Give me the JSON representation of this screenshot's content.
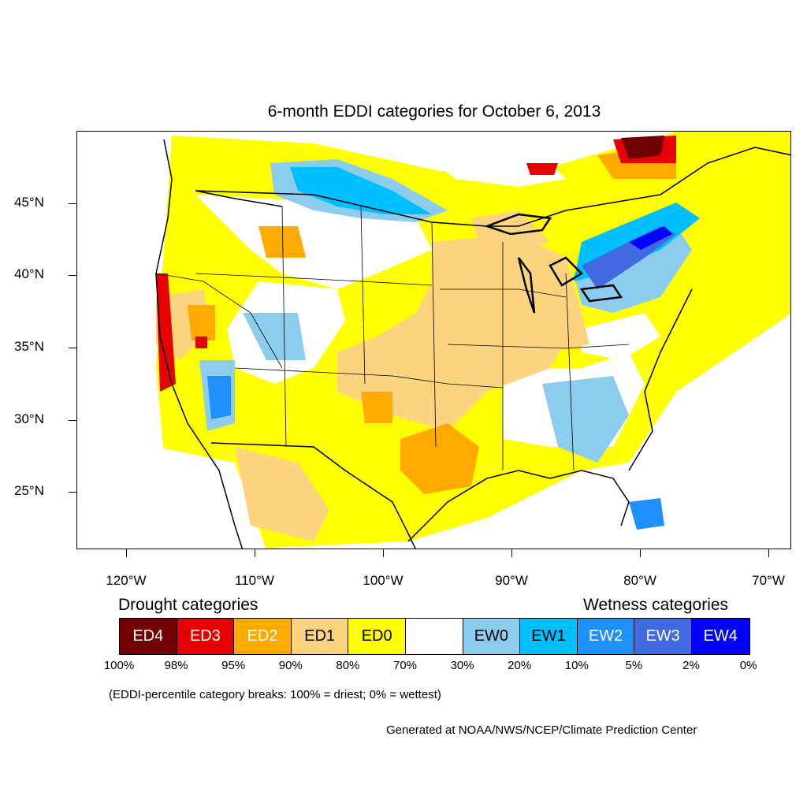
{
  "title": "6-month EDDI categories for October 6, 2013",
  "y_axis_labels": [
    "45°N",
    "40°N",
    "35°N",
    "30°N",
    "25°N"
  ],
  "x_axis_labels": [
    "120°W",
    "110°W",
    "100°W",
    "90°W",
    "80°W",
    "70°W"
  ],
  "legend": {
    "drought_heading": "Drought categories",
    "wetness_heading": "Wetness categories",
    "categories": [
      {
        "label": "ED4",
        "color": "#730000",
        "text_color": "#ffffff"
      },
      {
        "label": "ED3",
        "color": "#e60000",
        "text_color": "#ffffff"
      },
      {
        "label": "ED2",
        "color": "#ffaa00",
        "text_color": "#ffffff"
      },
      {
        "label": "ED1",
        "color": "#fcd37f",
        "text_color": "#000000"
      },
      {
        "label": "ED0",
        "color": "#ffff00",
        "text_color": "#000000"
      },
      {
        "label": "",
        "color": "#ffffff",
        "text_color": "#000000"
      },
      {
        "label": "EW0",
        "color": "#8ccdef",
        "text_color": "#000000"
      },
      {
        "label": "EW1",
        "color": "#00bfff",
        "text_color": "#000000"
      },
      {
        "label": "EW2",
        "color": "#1e90ff",
        "text_color": "#ffffff"
      },
      {
        "label": "EW3",
        "color": "#4169e1",
        "text_color": "#ffffff"
      },
      {
        "label": "EW4",
        "color": "#0000ff",
        "text_color": "#ffffff"
      }
    ],
    "percentiles": [
      "100%",
      "98%",
      "95%",
      "90%",
      "80%",
      "70%",
      "30%",
      "20%",
      "10%",
      "5%",
      "2%",
      "0%"
    ]
  },
  "note": "(EDDI-percentile category breaks: 100% = driest; 0% = wettest)",
  "credit": "Generated at NOAA/NWS/NCEP/Climate Prediction Center"
}
